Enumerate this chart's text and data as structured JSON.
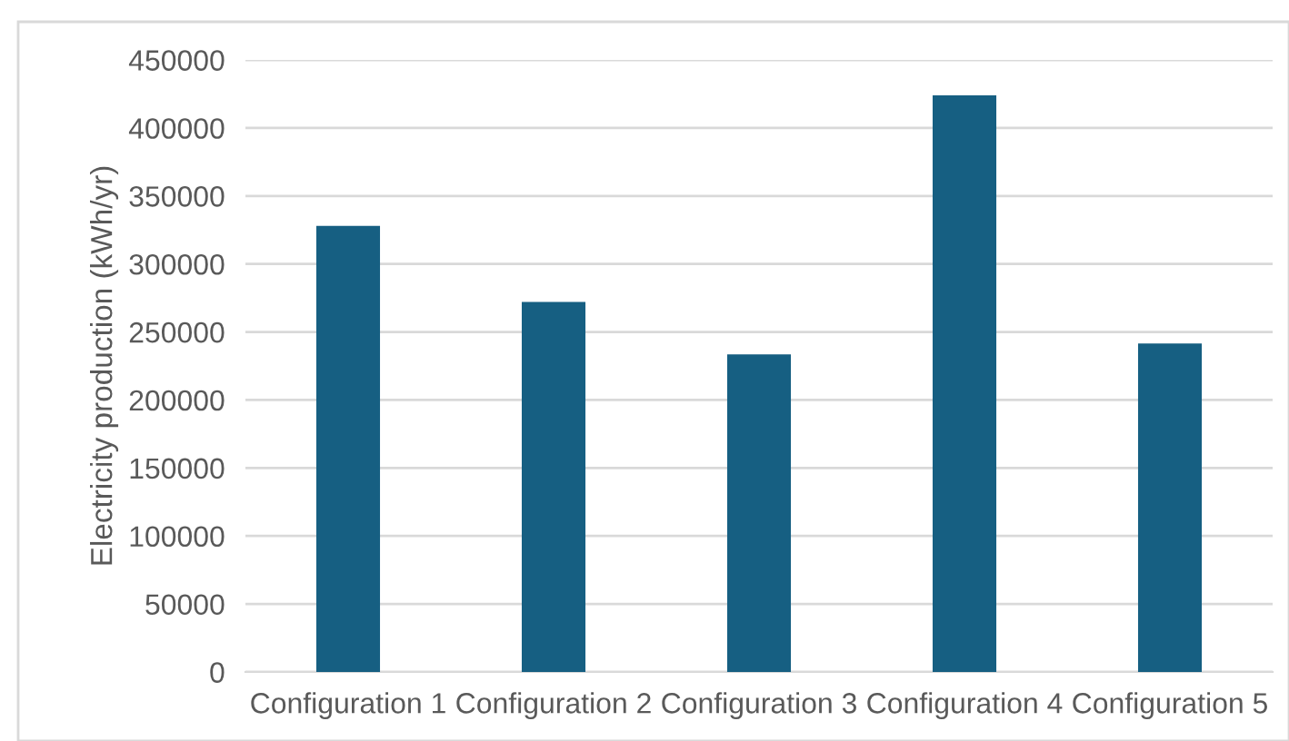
{
  "chart_data": {
    "type": "bar",
    "ylabel": "Electricity production (kWh/yr)",
    "categories": [
      "Configuration 1",
      "Configuration 2",
      "Configuration 3",
      "Configuration 4",
      "Configuration 5"
    ],
    "values": [
      328000,
      272000,
      233500,
      424000,
      241500
    ],
    "color": "#165f82",
    "ylim": [
      0,
      450000
    ],
    "yticks": [
      0,
      50000,
      100000,
      150000,
      200000,
      250000,
      300000,
      350000,
      400000,
      450000
    ],
    "grid": "y"
  }
}
